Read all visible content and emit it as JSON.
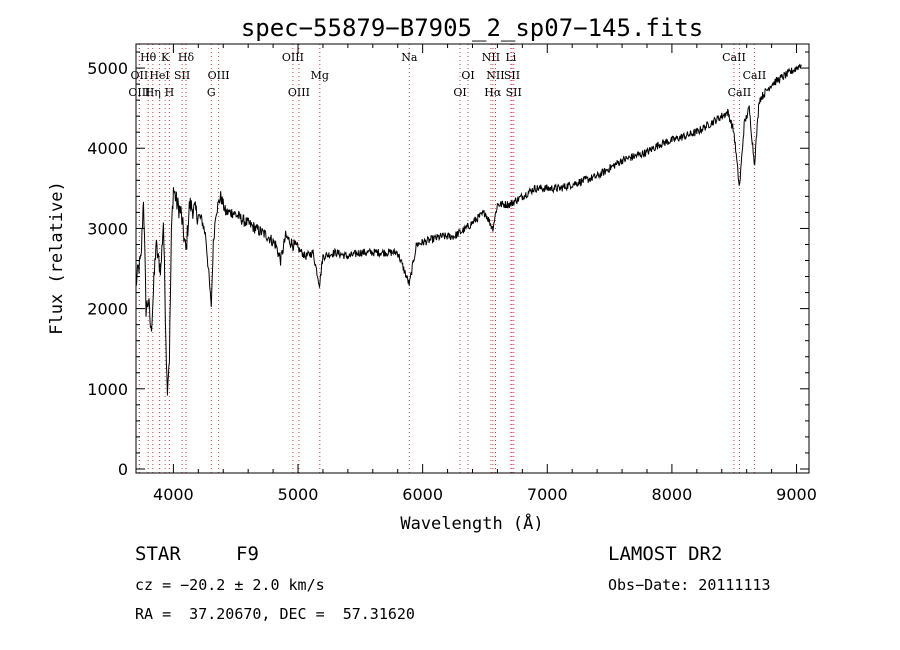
{
  "chart_data": {
    "type": "line",
    "title": "spec−55879−B7905_2_sp07−145.fits",
    "xlabel": "Wavelength (Å)",
    "ylabel": "Flux (relative)",
    "xlim": [
      3700,
      9100
    ],
    "ylim": [
      -50,
      5300
    ],
    "xticks": [
      4000,
      5000,
      6000,
      7000,
      8000,
      9000
    ],
    "yticks": [
      0,
      1000,
      2000,
      3000,
      4000,
      5000
    ],
    "grid": false,
    "series": [
      {
        "x": [
          3700,
          3720,
          3740,
          3760,
          3780,
          3800,
          3820,
          3840,
          3860,
          3880,
          3900,
          3920,
          3935,
          3950,
          3968,
          3985,
          4000,
          4030,
          4060,
          4101,
          4130,
          4180,
          4230,
          4260,
          4290,
          4303,
          4320,
          4340,
          4380,
          4420,
          4480,
          4560,
          4660,
          4760,
          4820,
          4861,
          4900,
          4960,
          5000,
          5060,
          5120,
          5172,
          5200,
          5300,
          5400,
          5500,
          5600,
          5700,
          5800,
          5893,
          5950,
          6050,
          6150,
          6250,
          6300,
          6350,
          6420,
          6500,
          6563,
          6600,
          6700,
          6800,
          6900,
          7000,
          7100,
          7200,
          7300,
          7400,
          7500,
          7600,
          7700,
          7800,
          7900,
          8000,
          8100,
          8200,
          8300,
          8400,
          8450,
          8498,
          8542,
          8580,
          8620,
          8662,
          8700,
          8750,
          8800,
          8850,
          8900,
          8950,
          9000,
          9040
        ],
        "values": [
          2300,
          2500,
          2600,
          3400,
          2000,
          2100,
          1700,
          2200,
          2800,
          2600,
          2500,
          3100,
          2000,
          1000,
          1400,
          3000,
          3500,
          3300,
          3200,
          2700,
          3300,
          3200,
          3100,
          2900,
          2300,
          2000,
          2800,
          3200,
          3400,
          3200,
          3200,
          3100,
          3000,
          2900,
          2800,
          2600,
          2900,
          2800,
          2750,
          2650,
          2700,
          2300,
          2650,
          2700,
          2650,
          2700,
          2700,
          2700,
          2700,
          2300,
          2800,
          2850,
          2900,
          2900,
          2950,
          3000,
          3100,
          3200,
          3000,
          3300,
          3300,
          3400,
          3500,
          3500,
          3500,
          3550,
          3600,
          3650,
          3750,
          3850,
          3900,
          3950,
          4050,
          4100,
          4150,
          4200,
          4300,
          4400,
          4450,
          4200,
          3500,
          4300,
          4500,
          3800,
          4600,
          4700,
          4800,
          4850,
          4900,
          4950,
          5000,
          5050
        ]
      }
    ],
    "lines": [
      {
        "label": "Hθ",
        "x": 3798,
        "row": 1
      },
      {
        "label": "OII",
        "x": 3727,
        "row": 2
      },
      {
        "label": "OIII",
        "x": 3727,
        "row": 3
      },
      {
        "label": "K",
        "x": 3934,
        "row": 1
      },
      {
        "label": "HeI",
        "x": 3889,
        "row": 2
      },
      {
        "label": "Hη",
        "x": 3835,
        "row": 3
      },
      {
        "label": "Hδ",
        "x": 4101,
        "row": 1
      },
      {
        "label": "SII",
        "x": 4070,
        "row": 2
      },
      {
        "label": "H",
        "x": 3968,
        "row": 3
      },
      {
        "label": "OIII",
        "x": 4363,
        "row": 2
      },
      {
        "label": "G",
        "x": 4304,
        "row": 3
      },
      {
        "label": "OIII",
        "x": 4959,
        "row": 1
      },
      {
        "label": "Mg",
        "x": 5175,
        "row": 2
      },
      {
        "label": "OIII",
        "x": 5007,
        "row": 3
      },
      {
        "label": "Na",
        "x": 5893,
        "row": 1
      },
      {
        "label": "OI",
        "x": 6364,
        "row": 2
      },
      {
        "label": "OI",
        "x": 6300,
        "row": 3
      },
      {
        "label": "NII",
        "x": 6548,
        "row": 1
      },
      {
        "label": "NII",
        "x": 6584,
        "row": 2
      },
      {
        "label": "Hα",
        "x": 6563,
        "row": 3
      },
      {
        "label": "Li",
        "x": 6708,
        "row": 1
      },
      {
        "label": "SII",
        "x": 6717,
        "row": 2
      },
      {
        "label": "SII",
        "x": 6731,
        "row": 3
      },
      {
        "label": "CaII",
        "x": 8498,
        "row": 1
      },
      {
        "label": "CaII",
        "x": 8662,
        "row": 2
      },
      {
        "label": "CaII",
        "x": 8542,
        "row": 3
      }
    ]
  },
  "info": {
    "object": "STAR",
    "subclass": "F9",
    "survey": "LAMOST DR2",
    "redshift": "cz = −20.2 ± 2.0 km/s",
    "obs_date": "Obs−Date: 20111113",
    "coords": "RA =  37.20670, DEC =  57.31620"
  }
}
